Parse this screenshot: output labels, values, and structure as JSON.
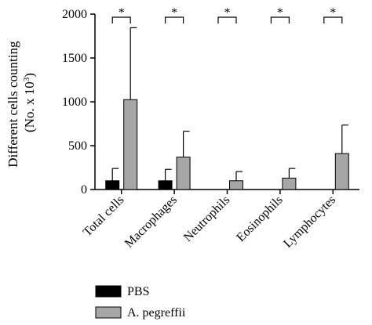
{
  "chart_data": {
    "type": "bar",
    "ylabel_line1": "Different cells counting",
    "ylabel_line2_prefix": "(No. x 10",
    "ylabel_line2_exp": "3",
    "ylabel_line2_suffix": ")",
    "ylim": [
      0,
      2000
    ],
    "yticks": [
      0,
      500,
      1000,
      1500,
      2000
    ],
    "ytick_labels": [
      "0",
      "500",
      "1000",
      "1500",
      "2000"
    ],
    "categories": [
      "Total cells",
      "Macrophages",
      "Neutrophils",
      "Eosinophils",
      "Lymphocytes"
    ],
    "series": [
      {
        "name": "PBS",
        "color": "#000000",
        "values": [
          100,
          100,
          0,
          0,
          0
        ],
        "error": [
          140,
          130,
          0,
          0,
          0
        ]
      },
      {
        "name": "A. pegreffii",
        "color": "#a6a6a6",
        "values": [
          1025,
          370,
          100,
          130,
          410
        ],
        "error": [
          820,
          295,
          105,
          110,
          325
        ]
      }
    ],
    "significance": [
      "*",
      "*",
      "*",
      "*",
      "*"
    ],
    "grid": false,
    "legend_position": "bottom-left"
  }
}
